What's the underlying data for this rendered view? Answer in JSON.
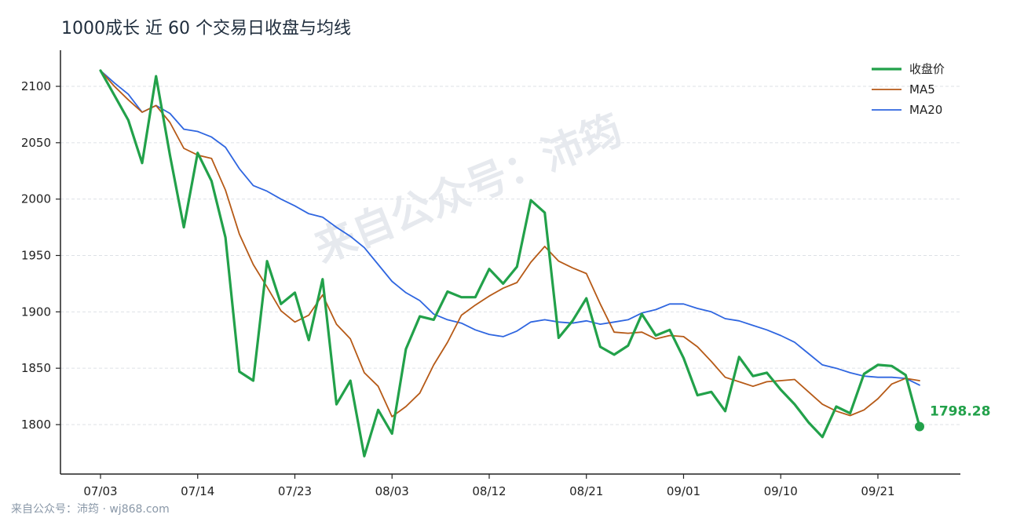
{
  "title": "1000成长 近 60 个交易日收盘与均线",
  "footer": "来自公众号：沛筠 · wj868.com",
  "watermark": "来自公众号：沛筠",
  "colors": {
    "close": "#22a14a",
    "ma5": "#b65a17",
    "ma20": "#2f66e0",
    "grid": "#dde1e6",
    "axis": "#222222"
  },
  "chart_data": {
    "type": "line",
    "title": "1000成长 近 60 个交易日收盘与均线",
    "xlabel": "",
    "ylabel": "",
    "ylim": [
      1765,
      2130
    ],
    "yticks": [
      1800,
      1850,
      1900,
      1950,
      2000,
      2050,
      2100
    ],
    "grid": "horizontal dashed",
    "legend_position": "top-right",
    "x_tick_labels": [
      {
        "index": 0,
        "label": "07/03"
      },
      {
        "index": 7,
        "label": "07/14"
      },
      {
        "index": 14,
        "label": "07/23"
      },
      {
        "index": 21,
        "label": "08/03"
      },
      {
        "index": 28,
        "label": "08/12"
      },
      {
        "index": 35,
        "label": "08/21"
      },
      {
        "index": 42,
        "label": "09/01"
      },
      {
        "index": 49,
        "label": "09/10"
      },
      {
        "index": 56,
        "label": "09/21"
      }
    ],
    "series": [
      {
        "name": "收盘价",
        "values": [
          2114,
          2092,
          2070,
          2032,
          2109,
          2039,
          1975,
          2041,
          2016,
          1966,
          1847,
          1839,
          1945,
          1907,
          1917,
          1875,
          1929,
          1818,
          1839,
          1772,
          1813,
          1792,
          1867,
          1896,
          1893,
          1918,
          1913,
          1913,
          1938,
          1925,
          1940,
          1999,
          1988,
          1877,
          1892,
          1912,
          1869,
          1862,
          1870,
          1898,
          1879,
          1884,
          1859,
          1826,
          1829,
          1812,
          1860,
          1843,
          1846,
          1831,
          1818,
          1802,
          1789,
          1816,
          1810,
          1845,
          1853,
          1852,
          1844,
          1798.28
        ]
      },
      {
        "name": "MA5",
        "values": [
          2114,
          2100,
          2088,
          2077,
          2083,
          2068,
          2045,
          2039,
          2036,
          2008,
          1969,
          1942,
          1922,
          1901,
          1891,
          1897,
          1915,
          1889,
          1876,
          1846,
          1834,
          1807,
          1816,
          1828,
          1853,
          1873,
          1897,
          1906,
          1914,
          1921,
          1926,
          1944,
          1958,
          1945,
          1939,
          1934,
          1907,
          1882,
          1881,
          1882,
          1876,
          1879,
          1878,
          1869,
          1856,
          1842,
          1838,
          1834,
          1838,
          1839,
          1840,
          1829,
          1818,
          1812,
          1808,
          1813,
          1823,
          1836,
          1841,
          1839
        ]
      },
      {
        "name": "MA20",
        "values": [
          2114,
          2103,
          2093,
          2077,
          2083,
          2076,
          2062,
          2060,
          2055,
          2046,
          2027,
          2012,
          2007,
          2000,
          1994,
          1987,
          1984,
          1975,
          1967,
          1957,
          1942,
          1927,
          1917,
          1910,
          1898,
          1893,
          1890,
          1884,
          1880,
          1878,
          1883,
          1891,
          1893,
          1891,
          1890,
          1892,
          1889,
          1891,
          1893,
          1899,
          1902,
          1907,
          1907,
          1903,
          1900,
          1894,
          1892,
          1888,
          1884,
          1879,
          1873,
          1863,
          1853,
          1850,
          1846,
          1843,
          1842,
          1842,
          1841,
          1835
        ]
      }
    ],
    "end_label": "1798.28"
  }
}
